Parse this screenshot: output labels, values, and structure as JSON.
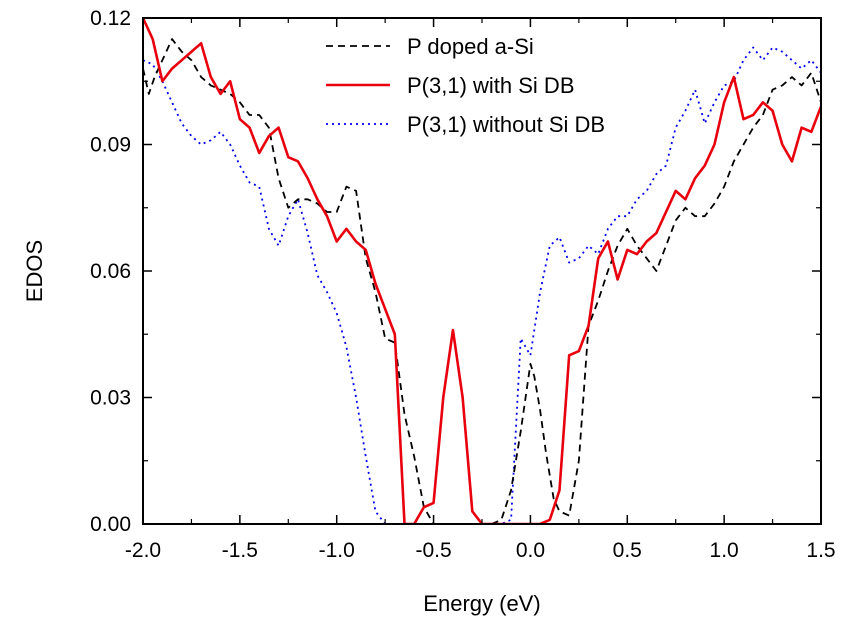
{
  "chart_data": {
    "type": "line",
    "title": "",
    "xlabel": "Energy (eV)",
    "ylabel": "EDOS",
    "xlim": [
      -2.0,
      1.5
    ],
    "ylim": [
      0.0,
      0.12
    ],
    "xticks": [
      "-2.0",
      "-1.5",
      "-1.0",
      "-0.5",
      "0.0",
      "0.5",
      "1.0",
      "1.5"
    ],
    "yticks": [
      "0.00",
      "0.03",
      "0.06",
      "0.09",
      "0.12"
    ],
    "grid": false,
    "legend_position": "top-center",
    "series": [
      {
        "name": "P doped a-Si",
        "color": "#000000",
        "style": "dashed",
        "x": [
          -2.0,
          -1.97,
          -1.94,
          -1.9,
          -1.85,
          -1.8,
          -1.75,
          -1.7,
          -1.65,
          -1.6,
          -1.55,
          -1.5,
          -1.45,
          -1.4,
          -1.35,
          -1.3,
          -1.25,
          -1.2,
          -1.15,
          -1.1,
          -1.05,
          -1.0,
          -0.95,
          -0.9,
          -0.85,
          -0.8,
          -0.75,
          -0.7,
          -0.65,
          -0.6,
          -0.55,
          -0.5,
          -0.45,
          -0.4,
          -0.35,
          -0.3,
          -0.25,
          -0.2,
          -0.15,
          -0.1,
          -0.05,
          0.0,
          0.02,
          0.05,
          0.08,
          0.12,
          0.15,
          0.2,
          0.25,
          0.3,
          0.35,
          0.4,
          0.45,
          0.5,
          0.55,
          0.6,
          0.65,
          0.7,
          0.75,
          0.8,
          0.85,
          0.9,
          0.95,
          1.0,
          1.05,
          1.1,
          1.15,
          1.2,
          1.25,
          1.3,
          1.35,
          1.4,
          1.45,
          1.5
        ],
        "y": [
          0.108,
          0.102,
          0.106,
          0.11,
          0.115,
          0.112,
          0.11,
          0.106,
          0.104,
          0.103,
          0.102,
          0.1,
          0.097,
          0.097,
          0.094,
          0.082,
          0.075,
          0.077,
          0.077,
          0.076,
          0.074,
          0.074,
          0.08,
          0.079,
          0.063,
          0.055,
          0.044,
          0.043,
          0.026,
          0.016,
          0.004,
          0.0,
          0.0,
          0.0,
          0.0,
          0.0,
          0.0,
          0.0,
          0.001,
          0.008,
          0.022,
          0.038,
          0.035,
          0.027,
          0.017,
          0.006,
          0.003,
          0.002,
          0.015,
          0.047,
          0.053,
          0.06,
          0.066,
          0.07,
          0.066,
          0.063,
          0.06,
          0.066,
          0.072,
          0.075,
          0.073,
          0.073,
          0.076,
          0.08,
          0.086,
          0.09,
          0.094,
          0.097,
          0.103,
          0.104,
          0.106,
          0.104,
          0.107,
          0.1
        ]
      },
      {
        "name": "P(3,1) with Si DB",
        "color": "#e8000d",
        "style": "solid",
        "x": [
          -2.0,
          -1.95,
          -1.9,
          -1.85,
          -1.8,
          -1.75,
          -1.7,
          -1.65,
          -1.6,
          -1.55,
          -1.5,
          -1.45,
          -1.4,
          -1.35,
          -1.3,
          -1.25,
          -1.2,
          -1.15,
          -1.1,
          -1.05,
          -1.0,
          -0.95,
          -0.9,
          -0.85,
          -0.8,
          -0.75,
          -0.7,
          -0.65,
          -0.6,
          -0.55,
          -0.5,
          -0.45,
          -0.4,
          -0.35,
          -0.3,
          -0.25,
          -0.2,
          -0.15,
          -0.1,
          -0.05,
          0.0,
          0.05,
          0.1,
          0.15,
          0.2,
          0.25,
          0.3,
          0.35,
          0.4,
          0.45,
          0.5,
          0.55,
          0.6,
          0.65,
          0.7,
          0.75,
          0.8,
          0.85,
          0.9,
          0.95,
          1.0,
          1.05,
          1.1,
          1.15,
          1.2,
          1.25,
          1.3,
          1.35,
          1.4,
          1.45,
          1.5
        ],
        "y": [
          0.12,
          0.115,
          0.105,
          0.108,
          0.11,
          0.112,
          0.114,
          0.106,
          0.102,
          0.105,
          0.096,
          0.094,
          0.088,
          0.092,
          0.094,
          0.087,
          0.086,
          0.082,
          0.077,
          0.073,
          0.067,
          0.07,
          0.067,
          0.065,
          0.057,
          0.051,
          0.045,
          0.0,
          0.0,
          0.004,
          0.005,
          0.03,
          0.046,
          0.03,
          0.003,
          0.0,
          0.0,
          0.0,
          0.0,
          0.0,
          0.0,
          0.0,
          0.001,
          0.008,
          0.04,
          0.041,
          0.047,
          0.063,
          0.067,
          0.058,
          0.065,
          0.064,
          0.067,
          0.069,
          0.074,
          0.079,
          0.077,
          0.082,
          0.085,
          0.09,
          0.1,
          0.106,
          0.096,
          0.097,
          0.1,
          0.098,
          0.09,
          0.086,
          0.094,
          0.093,
          0.099
        ]
      },
      {
        "name": "P(3,1) without Si DB",
        "color": "#0000ee",
        "style": "dotted",
        "x": [
          -2.0,
          -1.95,
          -1.9,
          -1.85,
          -1.8,
          -1.75,
          -1.7,
          -1.65,
          -1.6,
          -1.55,
          -1.5,
          -1.45,
          -1.4,
          -1.35,
          -1.3,
          -1.25,
          -1.2,
          -1.15,
          -1.1,
          -1.05,
          -1.0,
          -0.95,
          -0.9,
          -0.85,
          -0.8,
          -0.75,
          -0.7,
          -0.65,
          -0.6,
          -0.55,
          -0.5,
          -0.45,
          -0.4,
          -0.35,
          -0.3,
          -0.25,
          -0.2,
          -0.15,
          -0.1,
          -0.05,
          0.0,
          0.05,
          0.1,
          0.15,
          0.2,
          0.25,
          0.3,
          0.35,
          0.4,
          0.45,
          0.5,
          0.55,
          0.6,
          0.65,
          0.7,
          0.75,
          0.8,
          0.85,
          0.9,
          0.95,
          1.0,
          1.05,
          1.1,
          1.15,
          1.2,
          1.25,
          1.3,
          1.35,
          1.4,
          1.45,
          1.5
        ],
        "y": [
          0.11,
          0.109,
          0.105,
          0.1,
          0.095,
          0.092,
          0.09,
          0.091,
          0.093,
          0.09,
          0.085,
          0.081,
          0.08,
          0.07,
          0.066,
          0.073,
          0.077,
          0.069,
          0.059,
          0.055,
          0.05,
          0.042,
          0.03,
          0.016,
          0.003,
          0.0,
          0.0,
          0.0,
          0.0,
          0.0,
          0.0,
          0.0,
          0.0,
          0.0,
          0.0,
          0.0,
          0.0,
          0.0,
          0.001,
          0.044,
          0.04,
          0.055,
          0.066,
          0.068,
          0.062,
          0.063,
          0.066,
          0.064,
          0.07,
          0.073,
          0.073,
          0.077,
          0.079,
          0.083,
          0.085,
          0.094,
          0.098,
          0.103,
          0.095,
          0.1,
          0.104,
          0.105,
          0.11,
          0.113,
          0.11,
          0.113,
          0.112,
          0.11,
          0.108,
          0.11,
          0.107
        ]
      }
    ]
  }
}
